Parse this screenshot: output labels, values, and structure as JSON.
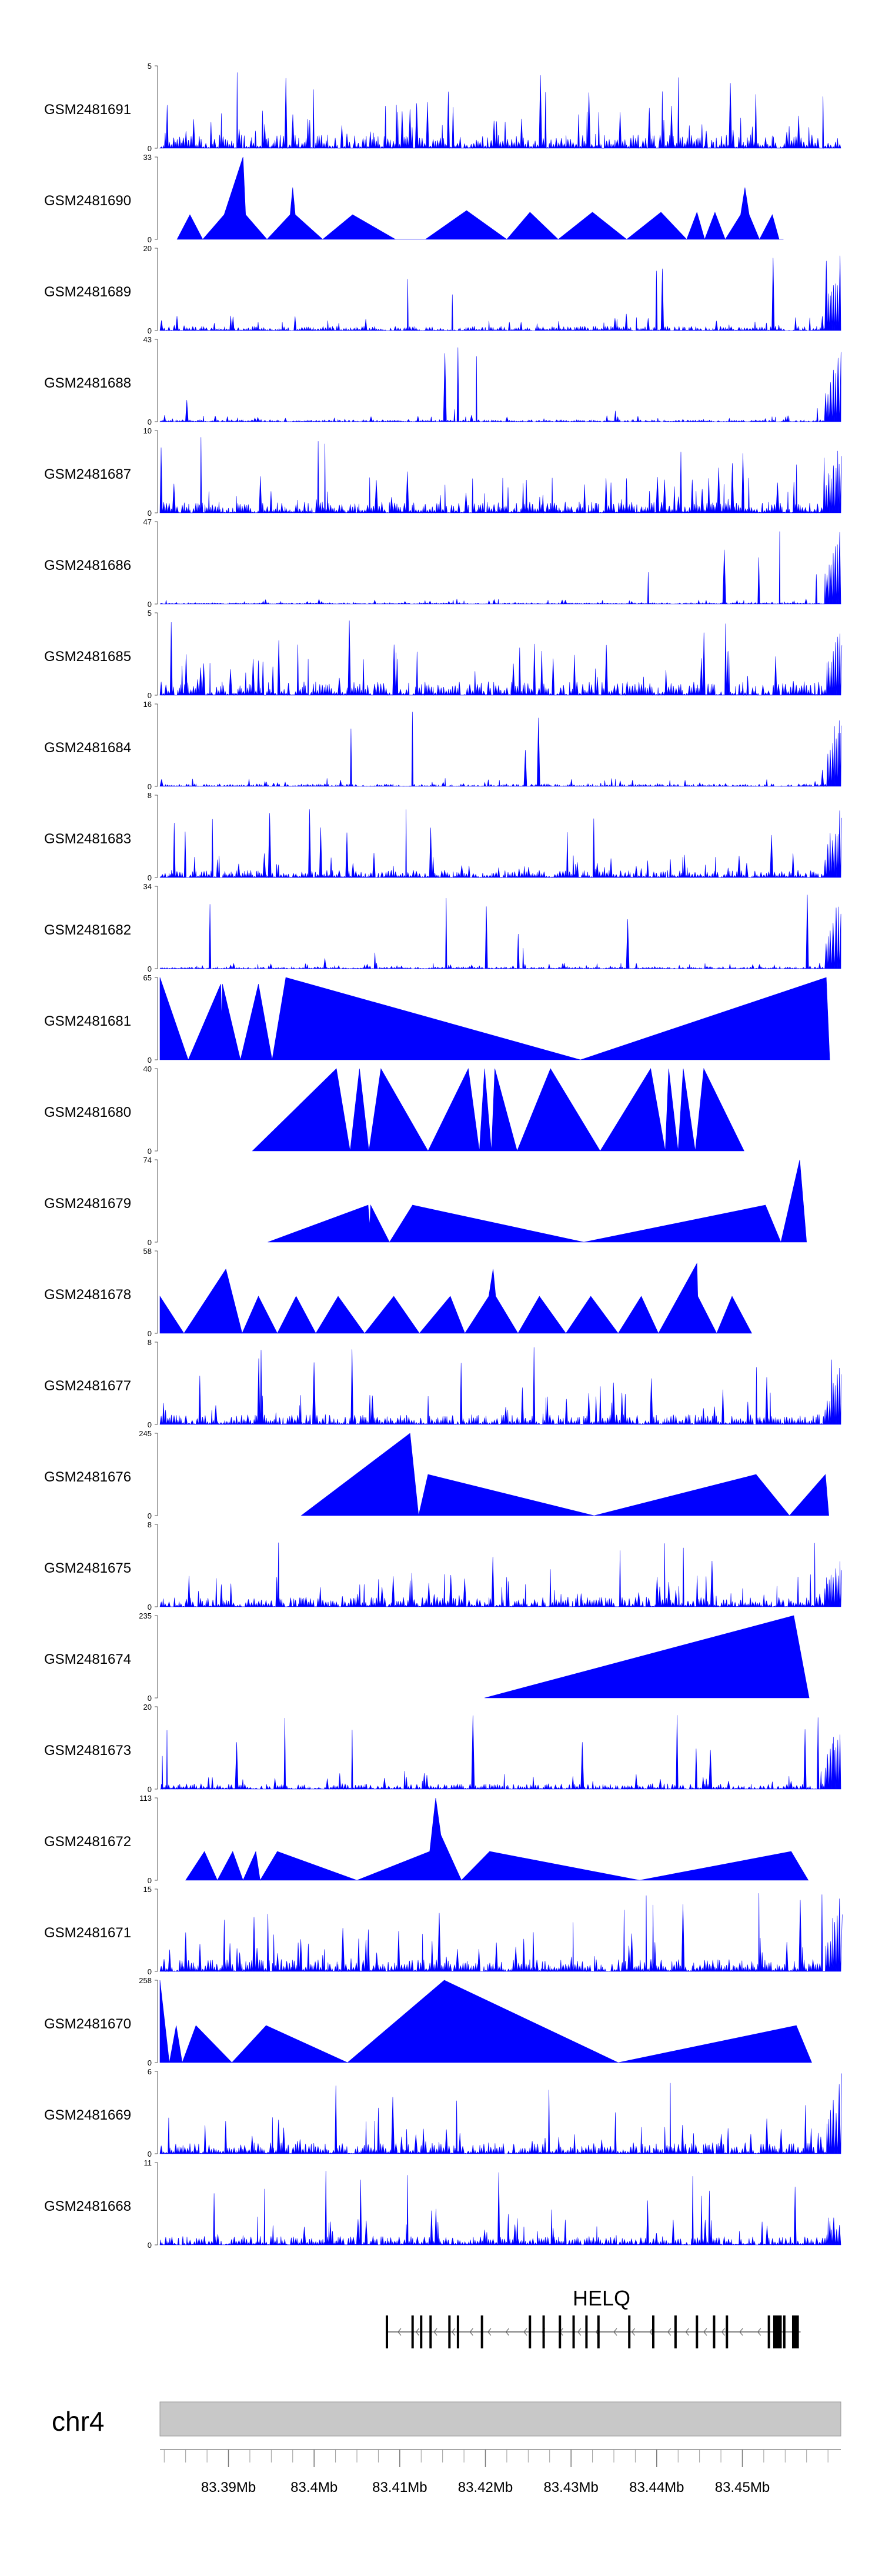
{
  "chart_data": {
    "type": "area",
    "title": "",
    "fill_color": "#0000ff",
    "chromosome": "chr4",
    "gene": "HELQ",
    "gene_strand": "-",
    "xlim_mb": [
      83.382,
      83.4615
    ],
    "x_ticks": [
      {
        "value": 83.39,
        "label": "83.39Mb"
      },
      {
        "value": 83.4,
        "label": "83.4Mb"
      },
      {
        "value": 83.41,
        "label": "83.41Mb"
      },
      {
        "value": 83.42,
        "label": "83.42Mb"
      },
      {
        "value": 83.43,
        "label": "83.43Mb"
      },
      {
        "value": 83.44,
        "label": "83.44Mb"
      },
      {
        "value": 83.45,
        "label": "83.45Mb"
      }
    ],
    "gene_exons_mb": [
      83.4085,
      83.4115,
      83.4125,
      83.4136,
      83.4158,
      83.4168,
      83.4196,
      83.4252,
      83.4268,
      83.4287,
      83.4303,
      83.4318,
      83.4332,
      83.4368,
      83.4396,
      83.4422,
      83.4447,
      83.4467,
      83.4482,
      83.4531,
      83.4549
    ],
    "gene_span_mb": [
      83.4085,
      83.4568
    ],
    "gene_thick_mb": [
      [
        83.4536,
        83.4546
      ],
      [
        83.4558,
        83.4566
      ]
    ],
    "series": [
      {
        "name": "GSM2481691",
        "ymax": 5,
        "pattern": "noise",
        "seed": 11,
        "peak": 0.55,
        "tail": 0
      },
      {
        "name": "GSM2481690",
        "ymax": 33,
        "pattern": "peaks",
        "points": [
          [
            83.384,
            0
          ],
          [
            83.3855,
            0.3
          ],
          [
            83.387,
            0
          ],
          [
            83.3895,
            0.3
          ],
          [
            83.3917,
            1.0
          ],
          [
            83.392,
            0.3
          ],
          [
            83.3945,
            0
          ],
          [
            83.3972,
            0.3
          ],
          [
            83.3975,
            0.63
          ],
          [
            83.3978,
            0.3
          ],
          [
            83.401,
            0
          ],
          [
            83.4045,
            0.3
          ],
          [
            83.4095,
            0
          ],
          [
            83.413,
            0
          ],
          [
            83.4178,
            0.35
          ],
          [
            83.4225,
            0
          ],
          [
            83.4252,
            0.33
          ],
          [
            83.4285,
            0
          ],
          [
            83.4325,
            0.33
          ],
          [
            83.4365,
            0
          ],
          [
            83.4405,
            0.33
          ],
          [
            83.4435,
            0
          ],
          [
            83.4447,
            0.33
          ],
          [
            83.4456,
            0
          ],
          [
            83.4468,
            0.33
          ],
          [
            83.448,
            0
          ],
          [
            83.4498,
            0.3
          ],
          [
            83.4503,
            0.63
          ],
          [
            83.4508,
            0.3
          ],
          [
            83.452,
            0
          ],
          [
            83.4535,
            0.3
          ],
          [
            83.4543,
            0
          ],
          [
            83.4548,
            0
          ]
        ]
      },
      {
        "name": "GSM2481689",
        "ymax": 20,
        "pattern": "noise",
        "seed": 23,
        "peak": 0.18,
        "tail": 1.0
      },
      {
        "name": "GSM2481688",
        "ymax": 43,
        "pattern": "noise",
        "seed": 31,
        "peak": 0.08,
        "tail": 1.0
      },
      {
        "name": "GSM2481687",
        "ymax": 10,
        "pattern": "noise",
        "seed": 37,
        "peak": 0.45,
        "tail": 1.0
      },
      {
        "name": "GSM2481686",
        "ymax": 47,
        "pattern": "noise",
        "seed": 41,
        "peak": 0.06,
        "tail": 1.0
      },
      {
        "name": "GSM2481685",
        "ymax": 5,
        "pattern": "noise",
        "seed": 43,
        "peak": 0.55,
        "tail": 0.9
      },
      {
        "name": "GSM2481684",
        "ymax": 16,
        "pattern": "noise",
        "seed": 47,
        "peak": 0.1,
        "tail": 1.0
      },
      {
        "name": "GSM2481683",
        "ymax": 8,
        "pattern": "noise",
        "seed": 53,
        "peak": 0.3,
        "tail": 1.0
      },
      {
        "name": "GSM2481682",
        "ymax": 34,
        "pattern": "noise",
        "seed": 59,
        "peak": 0.07,
        "tail": 1.0
      },
      {
        "name": "GSM2481681",
        "ymax": 65,
        "pattern": "peaks",
        "points": [
          [
            83.382,
            1.0
          ],
          [
            83.3853,
            0
          ],
          [
            83.3891,
            0.92
          ],
          [
            83.3892,
            0.5
          ],
          [
            83.3893,
            0.92
          ],
          [
            83.3914,
            0
          ],
          [
            83.3935,
            0.92
          ],
          [
            83.3951,
            0
          ],
          [
            83.3967,
            1.0
          ],
          [
            83.4311,
            0
          ],
          [
            83.4598,
            1.0
          ],
          [
            83.4602,
            0
          ]
        ]
      },
      {
        "name": "GSM2481680",
        "ymax": 40,
        "pattern": "peaks",
        "points": [
          [
            83.3928,
            0
          ],
          [
            83.4026,
            1.0
          ],
          [
            83.4042,
            0
          ],
          [
            83.4053,
            1.0
          ],
          [
            83.4064,
            0
          ],
          [
            83.4078,
            1.0
          ],
          [
            83.4133,
            0
          ],
          [
            83.418,
            1.0
          ],
          [
            83.4193,
            0
          ],
          [
            83.4199,
            1.0
          ],
          [
            83.4207,
            0
          ],
          [
            83.4211,
            1.0
          ],
          [
            83.4237,
            0
          ],
          [
            83.4276,
            1.0
          ],
          [
            83.4334,
            0
          ],
          [
            83.4393,
            1.0
          ],
          [
            83.441,
            0
          ],
          [
            83.4414,
            1.0
          ],
          [
            83.4425,
            0
          ],
          [
            83.4431,
            1.0
          ],
          [
            83.4445,
            0
          ],
          [
            83.4455,
            1.0
          ],
          [
            83.4502,
            0
          ]
        ]
      },
      {
        "name": "GSM2481679",
        "ymax": 74,
        "pattern": "peaks",
        "points": [
          [
            83.3946,
            0
          ],
          [
            83.4063,
            0.45
          ],
          [
            83.4065,
            0.2
          ],
          [
            83.4066,
            0.45
          ],
          [
            83.4088,
            0
          ],
          [
            83.4115,
            0.45
          ],
          [
            83.4315,
            0
          ],
          [
            83.4527,
            0.45
          ],
          [
            83.4545,
            0
          ],
          [
            83.4567,
            1.0
          ],
          [
            83.4575,
            0
          ]
        ]
      },
      {
        "name": "GSM2481678",
        "ymax": 58,
        "pattern": "peaks",
        "points": [
          [
            83.382,
            0.45
          ],
          [
            83.3848,
            0
          ],
          [
            83.3897,
            0.78
          ],
          [
            83.3916,
            0
          ],
          [
            83.3935,
            0.45
          ],
          [
            83.3957,
            0
          ],
          [
            83.3979,
            0.45
          ],
          [
            83.4002,
            0
          ],
          [
            83.4028,
            0.45
          ],
          [
            83.4059,
            0
          ],
          [
            83.4093,
            0.45
          ],
          [
            83.4123,
            0
          ],
          [
            83.4159,
            0.45
          ],
          [
            83.4176,
            0
          ],
          [
            83.4204,
            0.45
          ],
          [
            83.4209,
            0.78
          ],
          [
            83.4212,
            0.45
          ],
          [
            83.4238,
            0
          ],
          [
            83.4263,
            0.45
          ],
          [
            83.4294,
            0
          ],
          [
            83.4323,
            0.45
          ],
          [
            83.4355,
            0
          ],
          [
            83.4382,
            0.45
          ],
          [
            83.4402,
            0
          ],
          [
            83.4447,
            0.85
          ],
          [
            83.4448,
            0.45
          ],
          [
            83.447,
            0
          ],
          [
            83.4488,
            0.45
          ],
          [
            83.4511,
            0
          ]
        ]
      },
      {
        "name": "GSM2481677",
        "ymax": 8,
        "pattern": "noise",
        "seed": 61,
        "peak": 0.4,
        "tail": 0.8
      },
      {
        "name": "GSM2481676",
        "ymax": 245,
        "pattern": "peaks",
        "points": [
          [
            83.3985,
            0
          ],
          [
            83.4112,
            1.0
          ],
          [
            83.4122,
            0
          ],
          [
            83.4133,
            0.5
          ],
          [
            83.4327,
            0
          ],
          [
            83.4516,
            0.5
          ],
          [
            83.4555,
            0
          ],
          [
            83.4597,
            0.5
          ],
          [
            83.4601,
            0
          ]
        ]
      },
      {
        "name": "GSM2481675",
        "ymax": 8,
        "pattern": "noise",
        "seed": 67,
        "peak": 0.4,
        "tail": 0.7
      },
      {
        "name": "GSM2481674",
        "ymax": 235,
        "pattern": "peaks",
        "points": [
          [
            83.4199,
            0
          ],
          [
            83.456,
            1.0
          ],
          [
            83.4578,
            0
          ]
        ]
      },
      {
        "name": "GSM2481673",
        "ymax": 20,
        "pattern": "noise",
        "seed": 71,
        "peak": 0.22,
        "tail": 1.0
      },
      {
        "name": "GSM2481672",
        "ymax": 113,
        "pattern": "peaks",
        "points": [
          [
            83.385,
            0
          ],
          [
            83.3872,
            0.35
          ],
          [
            83.3887,
            0
          ],
          [
            83.3905,
            0.35
          ],
          [
            83.3917,
            0
          ],
          [
            83.3932,
            0.35
          ],
          [
            83.3937,
            0
          ],
          [
            83.3957,
            0.35
          ],
          [
            83.405,
            0
          ],
          [
            83.4135,
            0.35
          ],
          [
            83.4142,
            1.0
          ],
          [
            83.4148,
            0.55
          ],
          [
            83.4172,
            0
          ],
          [
            83.4205,
            0.35
          ],
          [
            83.438,
            0
          ],
          [
            83.4557,
            0.35
          ],
          [
            83.4577,
            0
          ]
        ]
      },
      {
        "name": "GSM2481671",
        "ymax": 15,
        "pattern": "noise",
        "seed": 73,
        "peak": 0.5,
        "tail": 1.0
      },
      {
        "name": "GSM2481670",
        "ymax": 258,
        "pattern": "peaks",
        "points": [
          [
            83.382,
            1.0
          ],
          [
            83.3831,
            0
          ],
          [
            83.3839,
            0.45
          ],
          [
            83.3846,
            0
          ],
          [
            83.3862,
            0.45
          ],
          [
            83.3904,
            0
          ],
          [
            83.3944,
            0.45
          ],
          [
            83.4039,
            0
          ],
          [
            83.4152,
            1.0
          ],
          [
            83.4355,
            0
          ],
          [
            83.4563,
            0.45
          ],
          [
            83.4581,
            0
          ]
        ]
      },
      {
        "name": "GSM2481669",
        "ymax": 6,
        "pattern": "noise",
        "seed": 79,
        "peak": 0.45,
        "tail": 1.0
      },
      {
        "name": "GSM2481668",
        "ymax": 11,
        "pattern": "noise",
        "seed": 83,
        "peak": 0.35,
        "tail": 0.3
      }
    ]
  }
}
